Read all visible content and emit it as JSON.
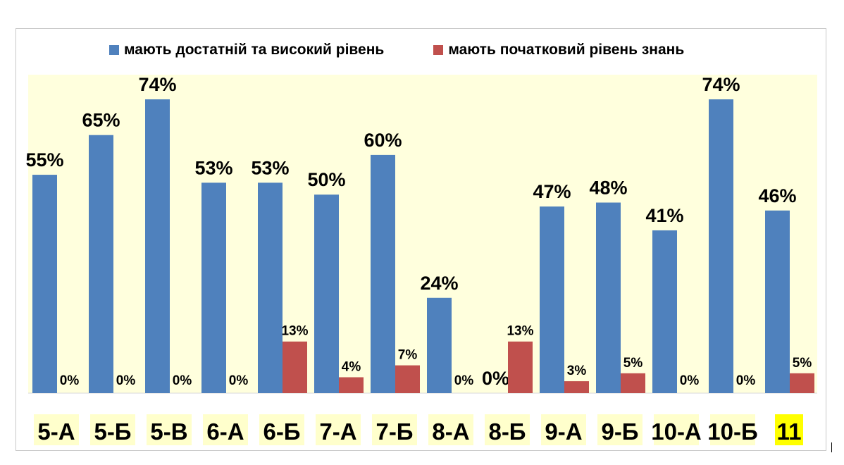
{
  "chart_data": {
    "type": "bar",
    "categories": [
      "5-А",
      "5-Б",
      "5-В",
      "6-А",
      "6-Б",
      "7-А",
      "7-Б",
      "8-А",
      "8-Б",
      "9-А",
      "9-Б",
      "10-А",
      "10-Б",
      "11"
    ],
    "highlighted_category": "11",
    "series": [
      {
        "name": "мають достатній та високий рівень",
        "color": "#4f81bd",
        "values": [
          55,
          65,
          74,
          53,
          53,
          50,
          60,
          24,
          0,
          47,
          48,
          41,
          74,
          46
        ],
        "labels": [
          "55%",
          "65%",
          "74%",
          "53%",
          "53%",
          "50%",
          "60%",
          "24%",
          "0%",
          "47%",
          "48%",
          "41%",
          "74%",
          "46%"
        ]
      },
      {
        "name": "мають початковий рівень знань",
        "color": "#c0504d",
        "values": [
          0,
          0,
          0,
          0,
          13,
          4,
          7,
          0,
          13,
          3,
          5,
          0,
          0,
          5
        ],
        "labels": [
          "0%",
          "0%",
          "0%",
          "0%",
          "13%",
          "4%",
          "7%",
          "0%",
          "13%",
          "3%",
          "5%",
          "0%",
          "0%",
          "5%"
        ]
      }
    ],
    "ylim": [
      0,
      80
    ],
    "legend_position": "top",
    "plot_background": "#ffffdd",
    "category_label_background": "#ffffcc",
    "highlight_color": "#ffff00",
    "grid": false
  }
}
